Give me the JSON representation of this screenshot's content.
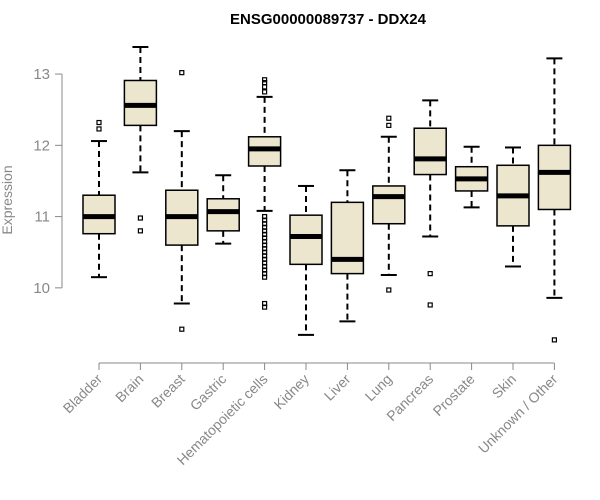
{
  "chart_data": {
    "type": "box",
    "title": "ENSG00000089737 - DDX24",
    "xlabel": "",
    "ylabel": "Expression",
    "ylim": [
      9.1,
      13.45
    ],
    "yticks": [
      10,
      11,
      12,
      13
    ],
    "ytick_labels": [
      "10",
      "11",
      "12",
      "13"
    ],
    "box_fill": "#ede6cf",
    "categories": [
      "Bladder",
      "Brain",
      "Breast",
      "Gastric",
      "Hematopoietic cells",
      "Kidney",
      "Liver",
      "Lung",
      "Pancreas",
      "Prostate",
      "Skin",
      "Unknown / Other"
    ],
    "boxes": [
      {
        "whisker_low": 10.15,
        "q1": 10.76,
        "median": 11.0,
        "q3": 11.3,
        "whisker_high": 12.06,
        "outliers": [
          12.23,
          12.32
        ]
      },
      {
        "whisker_low": 11.62,
        "q1": 12.28,
        "median": 12.56,
        "q3": 12.91,
        "whisker_high": 13.38,
        "outliers": [
          10.8,
          10.98
        ]
      },
      {
        "whisker_low": 9.78,
        "q1": 10.6,
        "median": 11.0,
        "q3": 11.37,
        "whisker_high": 12.2,
        "outliers": [
          9.42,
          13.02
        ]
      },
      {
        "whisker_low": 10.62,
        "q1": 10.8,
        "median": 11.07,
        "q3": 11.25,
        "whisker_high": 11.58,
        "outliers": []
      },
      {
        "whisker_low": 11.08,
        "q1": 11.71,
        "median": 11.95,
        "q3": 12.12,
        "whisker_high": 12.68,
        "outliers": [
          12.75,
          12.82,
          12.88,
          12.92,
          9.73,
          9.78,
          10.15,
          10.2,
          10.25,
          10.3,
          10.35,
          10.4,
          10.45,
          10.5,
          10.55,
          10.6,
          10.65,
          10.7,
          10.75,
          10.8,
          10.85,
          10.9,
          10.95,
          11.0
        ]
      },
      {
        "whisker_low": 9.34,
        "q1": 10.33,
        "median": 10.72,
        "q3": 11.02,
        "whisker_high": 11.43,
        "outliers": []
      },
      {
        "whisker_low": 9.53,
        "q1": 10.2,
        "median": 10.4,
        "q3": 11.2,
        "whisker_high": 11.65,
        "outliers": []
      },
      {
        "whisker_low": 10.18,
        "q1": 10.9,
        "median": 11.28,
        "q3": 11.43,
        "whisker_high": 12.12,
        "outliers": [
          9.97,
          12.28,
          12.38
        ]
      },
      {
        "whisker_low": 10.72,
        "q1": 11.59,
        "median": 11.81,
        "q3": 12.24,
        "whisker_high": 12.63,
        "outliers": [
          9.76,
          10.2
        ]
      },
      {
        "whisker_low": 11.13,
        "q1": 11.36,
        "median": 11.53,
        "q3": 11.7,
        "whisker_high": 11.98,
        "outliers": []
      },
      {
        "whisker_low": 10.3,
        "q1": 10.87,
        "median": 11.29,
        "q3": 11.72,
        "whisker_high": 11.97,
        "outliers": []
      },
      {
        "whisker_low": 9.86,
        "q1": 11.1,
        "median": 11.62,
        "q3": 12.0,
        "whisker_high": 13.22,
        "outliers": [
          9.27
        ]
      }
    ]
  }
}
